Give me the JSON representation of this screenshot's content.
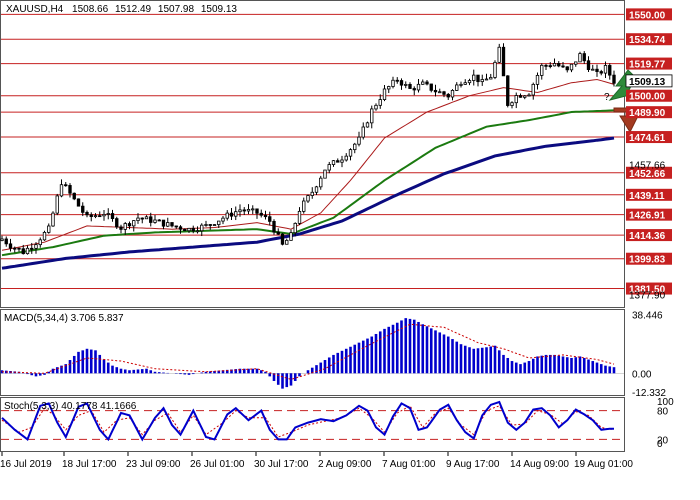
{
  "chart_data": [
    {
      "type": "candlestick",
      "title": "XAUUSD,H4",
      "ohlc_header": [
        "1508.66",
        "1512.49",
        "1507.98",
        "1509.13"
      ],
      "current_price": "1509.13",
      "ylim": [
        1372,
        1557
      ],
      "y_ticks": [
        "1550.00",
        "1534.74",
        "1519.77",
        "1509.13",
        "1500.00",
        "1489.90",
        "1474.61",
        "1457.66",
        "1452.66",
        "1439.11",
        "1426.91",
        "1414.36",
        "1399.83",
        "1381.50",
        "1377.90"
      ],
      "levels": [
        {
          "value": 1550.0,
          "label": "1550.00"
        },
        {
          "value": 1534.74,
          "label": "1534.74"
        },
        {
          "value": 1519.77,
          "label": "1519.77"
        },
        {
          "value": 1500.0,
          "label": "1500.00"
        },
        {
          "value": 1489.9,
          "label": "1489.90"
        },
        {
          "value": 1474.61,
          "label": "1474.61"
        },
        {
          "value": 1452.66,
          "label": "1452.66"
        },
        {
          "value": 1439.11,
          "label": "1439.11"
        },
        {
          "value": 1426.91,
          "label": "1426.91"
        },
        {
          "value": 1414.36,
          "label": "1414.36"
        },
        {
          "value": 1399.83,
          "label": "1399.83"
        },
        {
          "value": 1381.5,
          "label": "1381.50"
        }
      ],
      "x_labels": [
        "16 Jul 2019",
        "18 Jul 17:00",
        "23 Jul 09:00",
        "26 Jul 01:00",
        "30 Jul 17:00",
        "2 Aug 09:00",
        "7 Aug 01:00",
        "9 Aug 17:00",
        "14 Aug 09:00",
        "19 Aug 01:00"
      ],
      "close_anchors": [
        [
          0,
          1412
        ],
        [
          2,
          1408
        ],
        [
          5,
          1404
        ],
        [
          8,
          1410
        ],
        [
          11,
          1418
        ],
        [
          14,
          1447
        ],
        [
          17,
          1436
        ],
        [
          20,
          1425
        ],
        [
          24,
          1428
        ],
        [
          28,
          1419
        ],
        [
          32,
          1425
        ],
        [
          36,
          1423
        ],
        [
          40,
          1420
        ],
        [
          44,
          1418
        ],
        [
          48,
          1420
        ],
        [
          52,
          1425
        ],
        [
          56,
          1430
        ],
        [
          60,
          1428
        ],
        [
          63,
          1423
        ],
        [
          66,
          1408
        ],
        [
          68,
          1414
        ],
        [
          70,
          1430
        ],
        [
          73,
          1441
        ],
        [
          76,
          1455
        ],
        [
          80,
          1462
        ],
        [
          84,
          1473
        ],
        [
          87,
          1491
        ],
        [
          90,
          1503
        ],
        [
          93,
          1510
        ],
        [
          96,
          1504
        ],
        [
          99,
          1507
        ],
        [
          102,
          1503
        ],
        [
          105,
          1500
        ],
        [
          108,
          1509
        ],
        [
          111,
          1512
        ],
        [
          113,
          1508
        ],
        [
          115,
          1512
        ],
        [
          117,
          1528
        ],
        [
          119,
          1495
        ],
        [
          121,
          1500
        ],
        [
          124,
          1502
        ],
        [
          127,
          1518
        ],
        [
          130,
          1520
        ],
        [
          133,
          1515
        ],
        [
          136,
          1525
        ],
        [
          138,
          1518
        ],
        [
          140,
          1513
        ],
        [
          142,
          1517
        ],
        [
          144,
          1509
        ]
      ],
      "ma_fast_anchors": [
        [
          0,
          1405
        ],
        [
          10,
          1410
        ],
        [
          20,
          1420
        ],
        [
          30,
          1419
        ],
        [
          40,
          1418
        ],
        [
          50,
          1419
        ],
        [
          60,
          1422
        ],
        [
          68,
          1418
        ],
        [
          75,
          1428
        ],
        [
          82,
          1448
        ],
        [
          90,
          1474
        ],
        [
          100,
          1490
        ],
        [
          110,
          1500
        ],
        [
          118,
          1505
        ],
        [
          126,
          1502
        ],
        [
          134,
          1508
        ],
        [
          140,
          1510
        ],
        [
          144,
          1507
        ]
      ],
      "ma_mid_anchors": [
        [
          0,
          1402
        ],
        [
          12,
          1407
        ],
        [
          24,
          1414
        ],
        [
          36,
          1416
        ],
        [
          48,
          1417
        ],
        [
          60,
          1418
        ],
        [
          68,
          1415
        ],
        [
          78,
          1425
        ],
        [
          90,
          1448
        ],
        [
          102,
          1468
        ],
        [
          114,
          1481
        ],
        [
          124,
          1485
        ],
        [
          134,
          1490
        ],
        [
          144,
          1491
        ]
      ],
      "ma_slow_anchors": [
        [
          0,
          1394
        ],
        [
          15,
          1400
        ],
        [
          30,
          1404
        ],
        [
          45,
          1407
        ],
        [
          60,
          1410
        ],
        [
          70,
          1415
        ],
        [
          80,
          1423
        ],
        [
          92,
          1438
        ],
        [
          104,
          1452
        ],
        [
          116,
          1463
        ],
        [
          128,
          1469
        ],
        [
          138,
          1472
        ],
        [
          144,
          1474
        ]
      ],
      "forecast": {
        "up_label": "?"
      }
    },
    {
      "type": "bar",
      "title": "MACD(5,34,4) 3.706 5.837",
      "y_ticks": [
        "38.446",
        "0.00",
        "-12.332"
      ],
      "ylim": [
        -13.5,
        40
      ],
      "hist_anchors": [
        [
          0,
          2
        ],
        [
          4,
          1
        ],
        [
          8,
          -2
        ],
        [
          10,
          -1
        ],
        [
          12,
          3
        ],
        [
          15,
          6
        ],
        [
          18,
          14
        ],
        [
          20,
          16
        ],
        [
          22,
          15
        ],
        [
          24,
          9
        ],
        [
          26,
          5
        ],
        [
          28,
          3
        ],
        [
          30,
          2
        ],
        [
          34,
          3
        ],
        [
          36,
          1
        ],
        [
          40,
          0
        ],
        [
          44,
          -1
        ],
        [
          48,
          1
        ],
        [
          52,
          2
        ],
        [
          56,
          3
        ],
        [
          60,
          3
        ],
        [
          62,
          1
        ],
        [
          64,
          -5
        ],
        [
          66,
          -10
        ],
        [
          68,
          -8
        ],
        [
          70,
          -2
        ],
        [
          72,
          2
        ],
        [
          75,
          7
        ],
        [
          78,
          12
        ],
        [
          81,
          16
        ],
        [
          84,
          20
        ],
        [
          87,
          24
        ],
        [
          90,
          29
        ],
        [
          93,
          33
        ],
        [
          95,
          36
        ],
        [
          97,
          35
        ],
        [
          99,
          32
        ],
        [
          102,
          28
        ],
        [
          105,
          24
        ],
        [
          108,
          19
        ],
        [
          111,
          16
        ],
        [
          114,
          17
        ],
        [
          116,
          18
        ],
        [
          118,
          12
        ],
        [
          120,
          8
        ],
        [
          122,
          6
        ],
        [
          124,
          8
        ],
        [
          126,
          11
        ],
        [
          128,
          12
        ],
        [
          130,
          12
        ],
        [
          132,
          11
        ],
        [
          134,
          10
        ],
        [
          136,
          11
        ],
        [
          138,
          9
        ],
        [
          140,
          7
        ],
        [
          142,
          5
        ],
        [
          144,
          4
        ]
      ],
      "signal_anchors": [
        [
          0,
          1
        ],
        [
          10,
          0
        ],
        [
          20,
          10
        ],
        [
          28,
          8
        ],
        [
          36,
          3
        ],
        [
          48,
          1
        ],
        [
          60,
          3
        ],
        [
          68,
          -4
        ],
        [
          76,
          3
        ],
        [
          86,
          18
        ],
        [
          96,
          32
        ],
        [
          104,
          30
        ],
        [
          112,
          20
        ],
        [
          118,
          16
        ],
        [
          124,
          10
        ],
        [
          132,
          12
        ],
        [
          140,
          9
        ],
        [
          144,
          6
        ]
      ]
    },
    {
      "type": "line",
      "title": "Stoch(5,3,3) 40.1778 41.1666",
      "y_ticks": [
        "100",
        "80",
        "20",
        "0"
      ],
      "ylim": [
        0,
        100
      ],
      "levels": [
        80,
        20
      ],
      "k_anchors": [
        [
          0,
          65
        ],
        [
          3,
          40
        ],
        [
          6,
          20
        ],
        [
          9,
          90
        ],
        [
          11,
          95
        ],
        [
          13,
          55
        ],
        [
          15,
          25
        ],
        [
          18,
          88
        ],
        [
          20,
          95
        ],
        [
          23,
          40
        ],
        [
          25,
          20
        ],
        [
          28,
          75
        ],
        [
          30,
          70
        ],
        [
          33,
          20
        ],
        [
          36,
          65
        ],
        [
          38,
          85
        ],
        [
          40,
          50
        ],
        [
          42,
          30
        ],
        [
          45,
          80
        ],
        [
          48,
          25
        ],
        [
          50,
          20
        ],
        [
          53,
          72
        ],
        [
          55,
          85
        ],
        [
          58,
          60
        ],
        [
          61,
          80
        ],
        [
          63,
          40
        ],
        [
          65,
          20
        ],
        [
          67,
          20
        ],
        [
          69,
          45
        ],
        [
          72,
          55
        ],
        [
          75,
          62
        ],
        [
          78,
          58
        ],
        [
          81,
          70
        ],
        [
          84,
          90
        ],
        [
          86,
          80
        ],
        [
          88,
          45
        ],
        [
          90,
          30
        ],
        [
          92,
          68
        ],
        [
          94,
          95
        ],
        [
          96,
          85
        ],
        [
          98,
          40
        ],
        [
          100,
          45
        ],
        [
          103,
          82
        ],
        [
          105,
          92
        ],
        [
          107,
          60
        ],
        [
          109,
          35
        ],
        [
          111,
          22
        ],
        [
          113,
          70
        ],
        [
          115,
          92
        ],
        [
          117,
          98
        ],
        [
          119,
          55
        ],
        [
          121,
          40
        ],
        [
          123,
          55
        ],
        [
          125,
          82
        ],
        [
          127,
          85
        ],
        [
          129,
          70
        ],
        [
          131,
          45
        ],
        [
          133,
          60
        ],
        [
          135,
          82
        ],
        [
          137,
          72
        ],
        [
          139,
          60
        ],
        [
          141,
          40
        ],
        [
          143,
          42
        ]
      ],
      "d_anchors": [
        [
          0,
          60
        ],
        [
          4,
          35
        ],
        [
          7,
          45
        ],
        [
          10,
          85
        ],
        [
          12,
          72
        ],
        [
          15,
          40
        ],
        [
          18,
          70
        ],
        [
          21,
          80
        ],
        [
          24,
          35
        ],
        [
          27,
          60
        ],
        [
          30,
          65
        ],
        [
          33,
          30
        ],
        [
          36,
          60
        ],
        [
          39,
          75
        ],
        [
          42,
          35
        ],
        [
          45,
          70
        ],
        [
          48,
          30
        ],
        [
          52,
          55
        ],
        [
          55,
          80
        ],
        [
          58,
          65
        ],
        [
          62,
          65
        ],
        [
          65,
          25
        ],
        [
          68,
          35
        ],
        [
          72,
          50
        ],
        [
          76,
          58
        ],
        [
          80,
          65
        ],
        [
          84,
          85
        ],
        [
          87,
          65
        ],
        [
          90,
          35
        ],
        [
          93,
          75
        ],
        [
          96,
          90
        ],
        [
          99,
          45
        ],
        [
          102,
          75
        ],
        [
          105,
          85
        ],
        [
          108,
          50
        ],
        [
          111,
          30
        ],
        [
          114,
          80
        ],
        [
          117,
          90
        ],
        [
          120,
          50
        ],
        [
          123,
          52
        ],
        [
          126,
          80
        ],
        [
          129,
          72
        ],
        [
          132,
          52
        ],
        [
          135,
          78
        ],
        [
          138,
          70
        ],
        [
          141,
          45
        ],
        [
          143,
          41
        ]
      ]
    }
  ],
  "colors": {
    "candle": "#000000",
    "ma_fast": "#ab1a1a",
    "ma_mid": "#1b7a10",
    "ma_slow": "#0b0b80",
    "levels": "#c62020",
    "badge_bg": "#c62020",
    "current_bg": "#ffffff",
    "macd_hist": "#0000cc",
    "macd_signal": "#cc0000",
    "stoch_k": "#0000cc",
    "stoch_d": "#cc0000",
    "arrow_up": "#2e8b3a",
    "arrow_down": "#a33a20",
    "panel_border": "#555555"
  }
}
